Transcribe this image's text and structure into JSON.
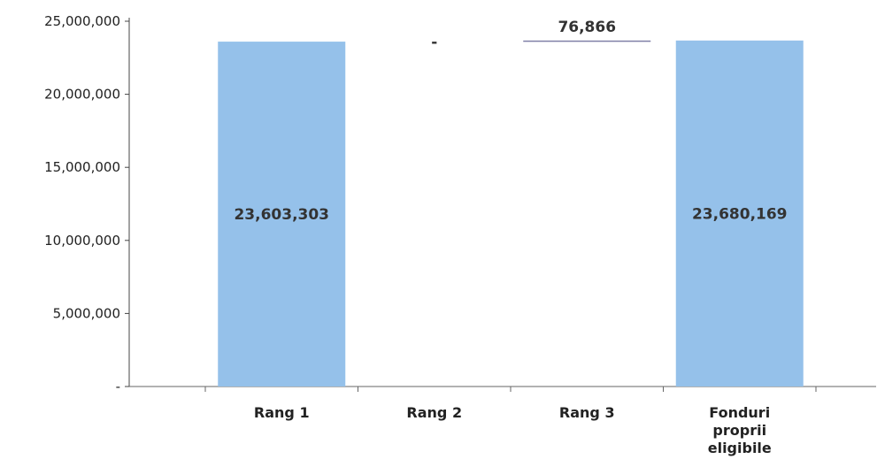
{
  "chart_data": {
    "type": "bar",
    "subtype": "waterfall",
    "title": "",
    "xlabel": "",
    "ylabel": "",
    "ylim": [
      0,
      25000000
    ],
    "yticks": [
      0,
      5000000,
      10000000,
      15000000,
      20000000,
      25000000
    ],
    "ytick_labels": [
      "-",
      "5,000,000",
      "10,000,000",
      "15,000,000",
      "20,000,000",
      "25,000,000"
    ],
    "categories": [
      "Rang 1",
      "Rang 2",
      "Rang 3",
      [
        "Fonduri",
        "proprii",
        "eligibile"
      ]
    ],
    "bars": [
      {
        "base": 0,
        "value": 23603303,
        "label": "23,603,303",
        "label_pos": "center"
      },
      {
        "base": 23603303,
        "value": 0,
        "label": "-",
        "label_pos": "top"
      },
      {
        "base": 23603303,
        "value": 76866,
        "label": "76,866",
        "label_pos": "above"
      },
      {
        "base": 0,
        "value": 23680169,
        "label": "23,680,169",
        "label_pos": "center"
      }
    ],
    "bar_color": "#95c1ea",
    "line_color": "#7f7fa6",
    "grid": false,
    "legend": "none"
  }
}
